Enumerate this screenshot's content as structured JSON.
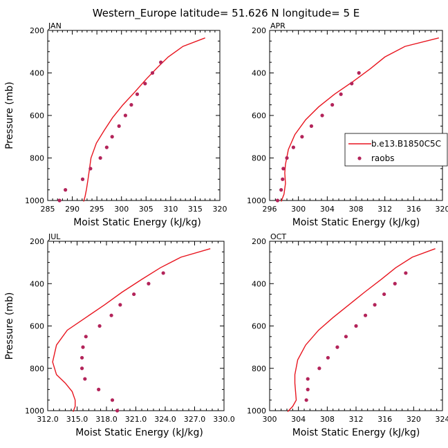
{
  "title": "Western_Europe  latitude= 51.626 N longitude= 5 E",
  "colors": {
    "model": "#e8141e",
    "obs": "#b3245a",
    "axis": "#000000"
  },
  "legend": {
    "model_label": "b.e13.B1850C5C",
    "obs_label": "raobs"
  },
  "chart_data": [
    {
      "type": "line",
      "panel_label": "JAN",
      "xlabel": "Moist Static Energy (kJ/kg)",
      "ylabel": "Pressure (mb)",
      "xlim": [
        285,
        320
      ],
      "ylim": [
        1000,
        200
      ],
      "y_reversed": true,
      "xticks": [
        285,
        290,
        295,
        300,
        305,
        310,
        315,
        320
      ],
      "xtick_labels": [
        "285",
        "290",
        "295",
        "300",
        "305",
        "310",
        "315",
        "320"
      ],
      "yticks": [
        200,
        400,
        600,
        800,
        1000
      ],
      "ytick_labels": [
        "200",
        "400",
        "600",
        "800",
        "1000"
      ],
      "series": [
        {
          "name": "b.e13.B1850C5C",
          "kind": "line",
          "x": [
            317.0,
            312.5,
            309.5,
            307.3,
            305.0,
            302.7,
            300.3,
            298.2,
            296.5,
            294.9,
            293.8,
            293.5,
            293.2,
            292.9,
            292.6,
            292.3
          ],
          "y": [
            235,
            275,
            325,
            375,
            430,
            490,
            550,
            610,
            670,
            730,
            800,
            850,
            900,
            945,
            980,
            1005
          ]
        },
        {
          "name": "raobs",
          "kind": "scatter",
          "x": [
            308.0,
            306.3,
            304.8,
            303.2,
            302.0,
            300.8,
            299.5,
            298.1,
            297.0,
            295.7,
            293.7,
            292.1,
            288.6,
            287.4
          ],
          "y": [
            350,
            400,
            450,
            500,
            550,
            600,
            650,
            700,
            750,
            800,
            850,
            900,
            950,
            1000
          ]
        }
      ]
    },
    {
      "type": "line",
      "panel_label": "APR",
      "xlabel": "Moist Static Energy (kJ/kg)",
      "ylabel": "",
      "xlim": [
        296,
        320
      ],
      "ylim": [
        1000,
        200
      ],
      "y_reversed": true,
      "xticks": [
        296,
        300,
        304,
        308,
        312,
        316,
        320
      ],
      "xtick_labels": [
        "296",
        "300",
        "304",
        "308",
        "312",
        "316",
        "320"
      ],
      "yticks": [
        200,
        400,
        600,
        800,
        1000
      ],
      "ytick_labels": [
        "200",
        "400",
        "600",
        "800",
        "1000"
      ],
      "series": [
        {
          "name": "b.e13.B1850C5C",
          "kind": "line",
          "x": [
            319.5,
            314.8,
            312.0,
            310.0,
            307.6,
            305.0,
            302.8,
            301.0,
            299.5,
            298.6,
            298.2,
            298.1,
            298.2,
            298.0,
            297.6
          ],
          "y": [
            235,
            275,
            325,
            380,
            440,
            500,
            560,
            620,
            690,
            760,
            830,
            870,
            920,
            970,
            1005
          ]
        },
        {
          "name": "raobs",
          "kind": "scatter",
          "x": [
            308.4,
            307.4,
            305.9,
            304.7,
            303.3,
            301.8,
            300.5,
            299.3,
            298.4,
            297.9,
            297.8,
            297.6,
            297.1
          ],
          "y": [
            400,
            450,
            500,
            550,
            600,
            650,
            700,
            750,
            800,
            850,
            900,
            950,
            1000
          ]
        }
      ]
    },
    {
      "type": "line",
      "panel_label": "JUL",
      "xlabel": "Moist Static Energy (kJ/kg)",
      "ylabel": "Pressure (mb)",
      "xlim": [
        312,
        330
      ],
      "ylim": [
        1000,
        200
      ],
      "y_reversed": true,
      "xticks": [
        312,
        315,
        318,
        321,
        324,
        327,
        330
      ],
      "xtick_labels": [
        "312.0",
        "315.0",
        "318.0",
        "321.0",
        "324.0",
        "327.0",
        "330.0"
      ],
      "yticks": [
        200,
        400,
        600,
        800,
        1000
      ],
      "ytick_labels": [
        "200",
        "400",
        "600",
        "800",
        "1000"
      ],
      "series": [
        {
          "name": "b.e13.B1850C5C",
          "kind": "line",
          "x": [
            328.6,
            325.6,
            323.5,
            321.6,
            319.6,
            317.8,
            315.9,
            314.0,
            312.9,
            312.5,
            312.9,
            313.8,
            314.5,
            314.8,
            314.8,
            314.6
          ],
          "y": [
            235,
            275,
            325,
            380,
            440,
            500,
            560,
            620,
            690,
            770,
            830,
            870,
            910,
            950,
            980,
            1005
          ]
        },
        {
          "name": "raobs",
          "kind": "scatter",
          "x": [
            323.8,
            322.3,
            320.8,
            319.4,
            318.5,
            317.3,
            315.9,
            315.6,
            315.5,
            315.5,
            315.8,
            317.2,
            318.6,
            319.1
          ],
          "y": [
            350,
            400,
            450,
            500,
            550,
            600,
            650,
            700,
            750,
            800,
            850,
            900,
            950,
            1000
          ]
        }
      ]
    },
    {
      "type": "line",
      "panel_label": "OCT",
      "xlabel": "Moist Static Energy (kJ/kg)",
      "ylabel": "",
      "xlim": [
        300,
        324
      ],
      "ylim": [
        1000,
        200
      ],
      "y_reversed": true,
      "xticks": [
        300,
        304,
        308,
        312,
        316,
        320,
        324
      ],
      "xtick_labels": [
        "300",
        "304",
        "308",
        "312",
        "316",
        "320",
        "324"
      ],
      "yticks": [
        200,
        400,
        600,
        800,
        1000
      ],
      "ytick_labels": [
        "200",
        "400",
        "600",
        "800",
        "1000"
      ],
      "series": [
        {
          "name": "b.e13.B1850C5C",
          "kind": "line",
          "x": [
            323.0,
            319.8,
            317.5,
            315.5,
            313.2,
            311.0,
            308.8,
            306.8,
            305.0,
            303.9,
            303.5,
            303.5,
            303.6,
            303.7,
            303.2,
            302.5
          ],
          "y": [
            235,
            275,
            325,
            380,
            440,
            500,
            560,
            620,
            690,
            760,
            830,
            870,
            910,
            950,
            980,
            1005
          ]
        },
        {
          "name": "raobs",
          "kind": "scatter",
          "x": [
            318.9,
            317.4,
            315.9,
            314.6,
            313.3,
            312.0,
            310.6,
            309.4,
            308.1,
            306.9,
            305.3,
            305.3,
            305.1
          ],
          "y": [
            350,
            400,
            450,
            500,
            550,
            600,
            650,
            700,
            750,
            800,
            850,
            900,
            950
          ]
        }
      ]
    }
  ]
}
